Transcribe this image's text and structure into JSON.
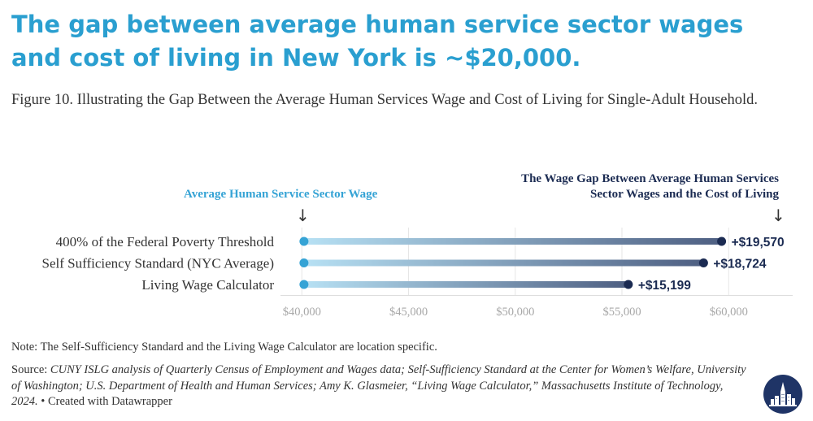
{
  "header": {
    "title": "The gap between average human service sector wages and cost of living in New York is ~$20,000.",
    "subtitle": "Figure 10. Illustrating the Gap Between the Average Human Services Wage and Cost of Living for Single-Adult Household."
  },
  "callouts": {
    "left": "Average Human Service Sector Wage",
    "right_line1": "The Wage Gap Between Average Human Services",
    "right_line2": "Sector Wages and the Cost of Living",
    "arrow_glyph": "↓"
  },
  "chart_data": {
    "type": "range_dot",
    "title": "Illustrating the Gap Between the Average Human Services Wage and Cost of Living for Single-Adult Household",
    "xlim": [
      39000,
      63000
    ],
    "x_ticks": [
      40000,
      45000,
      50000,
      55000,
      60000
    ],
    "x_tick_labels": [
      "$40,000",
      "$45,000",
      "$50,000",
      "$55,000",
      "$60,000"
    ],
    "grid": true,
    "categories": [
      "400% of the Federal Poverty Threshold",
      "Self Sufficiency Standard (NYC Average)",
      "Living Wage Calculator"
    ],
    "series": [
      {
        "name": "Average Human Service Sector Wage",
        "values": [
          40100,
          40100,
          40100
        ]
      },
      {
        "name": "Cost of Living",
        "values": [
          59670,
          58824,
          55299
        ]
      }
    ],
    "gap_labels": [
      "+$19,570",
      "+$18,724",
      "+$15,199"
    ]
  },
  "colors": {
    "title": "#2a9fd0",
    "start_dot": "#35a3d5",
    "end_dot": "#1b2b52",
    "bar_start": "#b7e1f4",
    "bar_end": "#4e5f82"
  },
  "footer": {
    "note": "Note: The Self-Sufficiency Standard and the Living Wage Calculator are location specific.",
    "source_prefix": "Source: ",
    "source_italic": "CUNY ISLG analysis of Quarterly Census of Employment and Wages data; Self-Sufficiency Standard at the Center for Women’s Welfare, University of Washington; U.S. Department of Health and Human Services; Amy K. Glasmeier, “Living Wage Calculator,” Massachusetts Institute of Technology, 2024.",
    "source_suffix": " • Created with Datawrapper"
  },
  "logo": {
    "icon": "city-skyline-icon"
  }
}
